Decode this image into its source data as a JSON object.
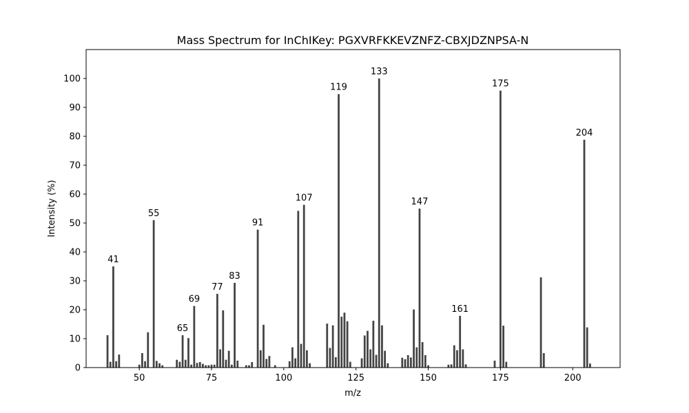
{
  "chart_data": {
    "type": "bar",
    "title": "Mass Spectrum for InChIKey: PGXVRFKKEVZNFZ-CBXJDZNPSA-N",
    "xlabel": "m/z",
    "ylabel": "Intensity (%)",
    "xlim": [
      31.6,
      216.4
    ],
    "ylim": [
      0,
      110
    ],
    "xticks": [
      50,
      75,
      100,
      125,
      150,
      175,
      200
    ],
    "yticks": [
      0,
      10,
      20,
      30,
      40,
      50,
      60,
      70,
      80,
      90,
      100
    ],
    "grid": false,
    "bar_color": "#444444",
    "peaks": [
      {
        "mz": 39,
        "intensity": 11.2
      },
      {
        "mz": 40,
        "intensity": 2.0
      },
      {
        "mz": 41,
        "intensity": 35.0,
        "label": "41"
      },
      {
        "mz": 42,
        "intensity": 2.2
      },
      {
        "mz": 43,
        "intensity": 4.5
      },
      {
        "mz": 50,
        "intensity": 1.0
      },
      {
        "mz": 51,
        "intensity": 5.0
      },
      {
        "mz": 52,
        "intensity": 2.2
      },
      {
        "mz": 53,
        "intensity": 12.2
      },
      {
        "mz": 55,
        "intensity": 51.0,
        "label": "55"
      },
      {
        "mz": 56,
        "intensity": 2.3
      },
      {
        "mz": 57,
        "intensity": 1.5
      },
      {
        "mz": 58,
        "intensity": 0.8
      },
      {
        "mz": 63,
        "intensity": 2.7
      },
      {
        "mz": 64,
        "intensity": 2.0
      },
      {
        "mz": 65,
        "intensity": 11.2,
        "label": "65"
      },
      {
        "mz": 66,
        "intensity": 2.7
      },
      {
        "mz": 67,
        "intensity": 10.2
      },
      {
        "mz": 68,
        "intensity": 1.0
      },
      {
        "mz": 69,
        "intensity": 21.3,
        "label": "69"
      },
      {
        "mz": 70,
        "intensity": 1.6
      },
      {
        "mz": 71,
        "intensity": 1.9
      },
      {
        "mz": 72,
        "intensity": 1.3
      },
      {
        "mz": 73,
        "intensity": 0.8
      },
      {
        "mz": 74,
        "intensity": 0.8
      },
      {
        "mz": 75,
        "intensity": 1.0
      },
      {
        "mz": 76,
        "intensity": 1.0
      },
      {
        "mz": 77,
        "intensity": 25.5,
        "label": "77"
      },
      {
        "mz": 78,
        "intensity": 6.3
      },
      {
        "mz": 79,
        "intensity": 19.8
      },
      {
        "mz": 80,
        "intensity": 2.7
      },
      {
        "mz": 81,
        "intensity": 5.8
      },
      {
        "mz": 82,
        "intensity": 1.0
      },
      {
        "mz": 83,
        "intensity": 29.3,
        "label": "83"
      },
      {
        "mz": 84,
        "intensity": 2.4
      },
      {
        "mz": 87,
        "intensity": 0.8
      },
      {
        "mz": 88,
        "intensity": 0.8
      },
      {
        "mz": 89,
        "intensity": 1.9
      },
      {
        "mz": 91,
        "intensity": 47.7,
        "label": "91"
      },
      {
        "mz": 92,
        "intensity": 6.0
      },
      {
        "mz": 93,
        "intensity": 14.8
      },
      {
        "mz": 94,
        "intensity": 3.0
      },
      {
        "mz": 95,
        "intensity": 4.0
      },
      {
        "mz": 97,
        "intensity": 0.8
      },
      {
        "mz": 102,
        "intensity": 2.2
      },
      {
        "mz": 103,
        "intensity": 7.0
      },
      {
        "mz": 104,
        "intensity": 3.2
      },
      {
        "mz": 105,
        "intensity": 54.2
      },
      {
        "mz": 106,
        "intensity": 8.2
      },
      {
        "mz": 107,
        "intensity": 56.3,
        "label": "107"
      },
      {
        "mz": 108,
        "intensity": 6.0
      },
      {
        "mz": 109,
        "intensity": 1.5
      },
      {
        "mz": 115,
        "intensity": 15.2
      },
      {
        "mz": 116,
        "intensity": 6.8
      },
      {
        "mz": 117,
        "intensity": 14.6
      },
      {
        "mz": 118,
        "intensity": 3.6
      },
      {
        "mz": 119,
        "intensity": 94.6,
        "label": "119"
      },
      {
        "mz": 120,
        "intensity": 17.6
      },
      {
        "mz": 121,
        "intensity": 19.0
      },
      {
        "mz": 122,
        "intensity": 16.0
      },
      {
        "mz": 123,
        "intensity": 2.0
      },
      {
        "mz": 127,
        "intensity": 3.2
      },
      {
        "mz": 128,
        "intensity": 11.1
      },
      {
        "mz": 129,
        "intensity": 12.7
      },
      {
        "mz": 130,
        "intensity": 6.3
      },
      {
        "mz": 131,
        "intensity": 16.2
      },
      {
        "mz": 132,
        "intensity": 4.4
      },
      {
        "mz": 133,
        "intensity": 100.0,
        "label": "133"
      },
      {
        "mz": 134,
        "intensity": 14.6
      },
      {
        "mz": 135,
        "intensity": 5.8
      },
      {
        "mz": 136,
        "intensity": 1.5
      },
      {
        "mz": 141,
        "intensity": 3.4
      },
      {
        "mz": 142,
        "intensity": 2.9
      },
      {
        "mz": 143,
        "intensity": 4.3
      },
      {
        "mz": 144,
        "intensity": 3.5
      },
      {
        "mz": 145,
        "intensity": 20.1
      },
      {
        "mz": 146,
        "intensity": 7.0
      },
      {
        "mz": 147,
        "intensity": 55.0,
        "label": "147"
      },
      {
        "mz": 148,
        "intensity": 8.8
      },
      {
        "mz": 149,
        "intensity": 4.3
      },
      {
        "mz": 150,
        "intensity": 0.8
      },
      {
        "mz": 157,
        "intensity": 1.0
      },
      {
        "mz": 158,
        "intensity": 1.1
      },
      {
        "mz": 159,
        "intensity": 7.7
      },
      {
        "mz": 160,
        "intensity": 6.0
      },
      {
        "mz": 161,
        "intensity": 17.9,
        "label": "161"
      },
      {
        "mz": 162,
        "intensity": 6.3
      },
      {
        "mz": 163,
        "intensity": 1.1
      },
      {
        "mz": 173,
        "intensity": 2.4
      },
      {
        "mz": 175,
        "intensity": 95.8,
        "label": "175"
      },
      {
        "mz": 176,
        "intensity": 14.5
      },
      {
        "mz": 177,
        "intensity": 2.0
      },
      {
        "mz": 189,
        "intensity": 31.2
      },
      {
        "mz": 190,
        "intensity": 5.0
      },
      {
        "mz": 204,
        "intensity": 78.8,
        "label": "204"
      },
      {
        "mz": 205,
        "intensity": 13.9
      },
      {
        "mz": 206,
        "intensity": 1.4
      }
    ]
  }
}
